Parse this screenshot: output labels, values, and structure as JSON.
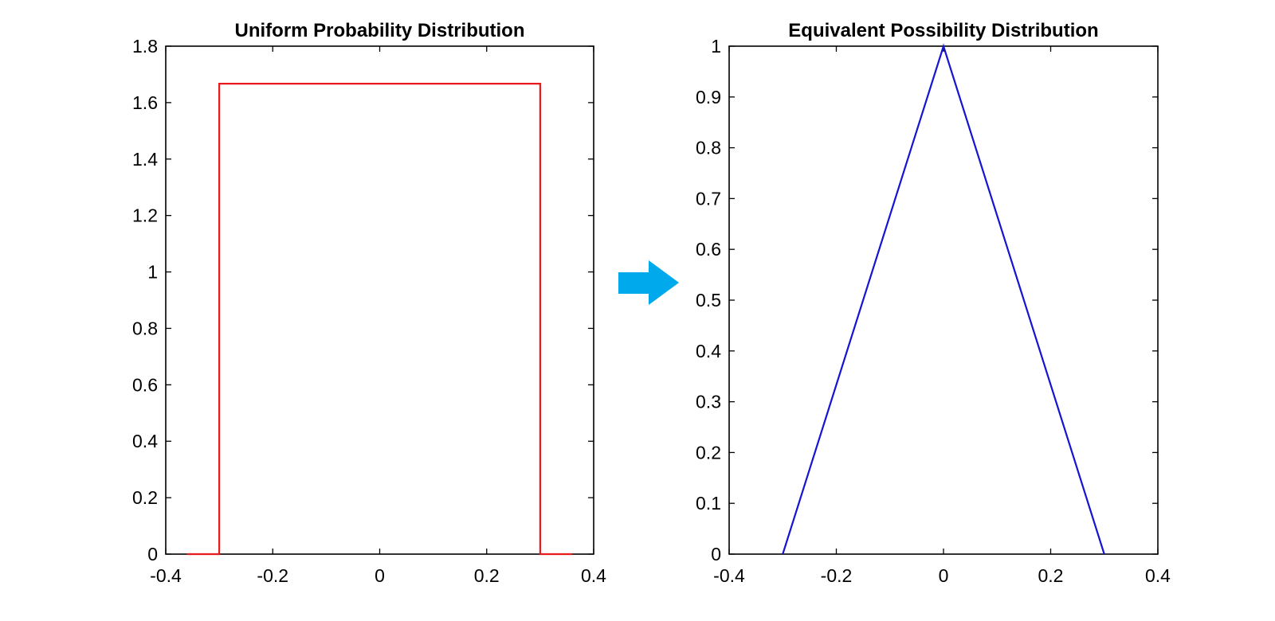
{
  "chart_data": [
    {
      "type": "line",
      "title": "Uniform Probability Distribution",
      "xlabel": "",
      "ylabel": "",
      "xlim": [
        -0.4,
        0.4
      ],
      "ylim": [
        0,
        1.8
      ],
      "xticks": [
        -0.4,
        -0.2,
        0,
        0.2,
        0.4
      ],
      "xtick_labels": [
        "-0.4",
        "-0.2",
        "0",
        "0.2",
        "0.4"
      ],
      "yticks": [
        0,
        0.2,
        0.4,
        0.6,
        0.8,
        1,
        1.2,
        1.4,
        1.6,
        1.8
      ],
      "ytick_labels": [
        "0",
        "0.2",
        "0.4",
        "0.6",
        "0.8",
        "1",
        "1.2",
        "1.4",
        "1.6",
        "1.8"
      ],
      "grid": false,
      "series": [
        {
          "color": "#e8191c",
          "x": [
            -0.36,
            -0.3,
            -0.3,
            0.3,
            0.3,
            0.36
          ],
          "y": [
            0,
            0,
            1.667,
            1.667,
            0,
            0
          ]
        }
      ]
    },
    {
      "type": "line",
      "title": "Equivalent Possibility Distribution",
      "xlabel": "",
      "ylabel": "",
      "xlim": [
        -0.4,
        0.4
      ],
      "ylim": [
        0,
        1
      ],
      "xticks": [
        -0.4,
        -0.2,
        0,
        0.2,
        0.4
      ],
      "xtick_labels": [
        "-0.4",
        "-0.2",
        "0",
        "0.2",
        "0.4"
      ],
      "yticks": [
        0,
        0.1,
        0.2,
        0.3,
        0.4,
        0.5,
        0.6,
        0.7,
        0.8,
        0.9,
        1
      ],
      "ytick_labels": [
        "0",
        "0.1",
        "0.2",
        "0.3",
        "0.4",
        "0.5",
        "0.6",
        "0.7",
        "0.8",
        "0.9",
        "1"
      ],
      "grid": false,
      "series": [
        {
          "color": "#1414d2",
          "x": [
            -0.3,
            0,
            0.3
          ],
          "y": [
            0,
            1,
            0
          ]
        }
      ]
    }
  ],
  "arrow": {
    "icon": "right-arrow-icon",
    "color": "#00a8ec"
  }
}
